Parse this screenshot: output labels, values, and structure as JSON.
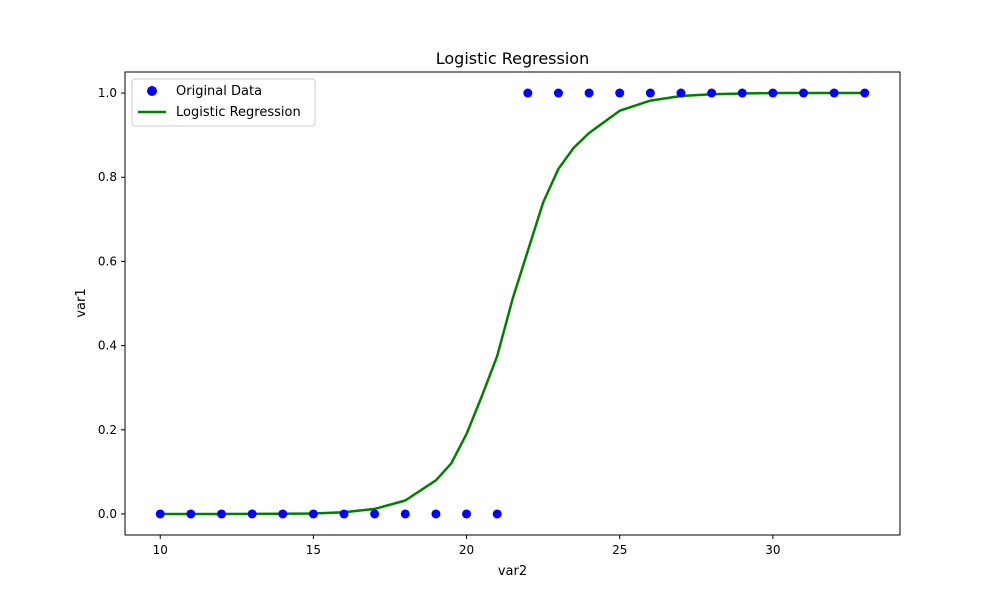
{
  "chart_data": {
    "type": "scatter",
    "title": "Logistic Regression",
    "xlabel": "var2",
    "ylabel": "var1",
    "xlim": [
      8.85,
      34.15
    ],
    "ylim": [
      -0.05,
      1.05
    ],
    "xticks": [
      10,
      15,
      20,
      25,
      30
    ],
    "yticks": [
      0.0,
      0.2,
      0.4,
      0.6,
      0.8,
      1.0
    ],
    "legend_position": "top-left",
    "grid": false,
    "series": [
      {
        "name": "Original Data",
        "kind": "scatter",
        "color": "#0000ff",
        "x": [
          10,
          11,
          12,
          13,
          14,
          15,
          16,
          17,
          18,
          19,
          20,
          21,
          22,
          23,
          24,
          25,
          26,
          27,
          28,
          29,
          30,
          31,
          32,
          33
        ],
        "y": [
          0,
          0,
          0,
          0,
          0,
          0,
          0,
          0,
          0,
          0,
          0,
          0,
          1,
          1,
          1,
          1,
          1,
          1,
          1,
          1,
          1,
          1,
          1,
          1
        ]
      },
      {
        "name": "Logistic Regression",
        "kind": "line",
        "color": "#008000",
        "x": [
          10,
          11,
          12,
          13,
          14,
          15,
          16,
          17,
          18,
          19,
          19.5,
          20,
          20.5,
          21,
          21.5,
          22,
          22.5,
          23,
          23.5,
          24,
          25,
          26,
          27,
          28,
          29,
          30,
          31,
          32,
          33
        ],
        "y": [
          0.0,
          0.0,
          0.0,
          0.0001,
          0.0004,
          0.001,
          0.004,
          0.012,
          0.032,
          0.08,
          0.12,
          0.19,
          0.28,
          0.375,
          0.51,
          0.625,
          0.74,
          0.82,
          0.87,
          0.905,
          0.958,
          0.982,
          0.993,
          0.997,
          0.999,
          1.0,
          1.0,
          1.0,
          1.0
        ]
      }
    ]
  }
}
